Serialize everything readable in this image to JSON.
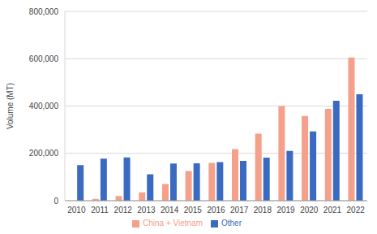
{
  "chart_data": {
    "type": "bar",
    "y_label": "Volume (MT)",
    "categories": [
      "2010",
      "2011",
      "2012",
      "2013",
      "2014",
      "2015",
      "2016",
      "2017",
      "2018",
      "2019",
      "2020",
      "2021",
      "2022"
    ],
    "series": [
      {
        "name": "China + Vietnam",
        "color": "#f4a08b",
        "values": [
          0,
          8000,
          20000,
          35000,
          70000,
          125000,
          160000,
          218000,
          283000,
          400000,
          358000,
          388000,
          605000
        ]
      },
      {
        "name": "Other",
        "color": "#3b6ac1",
        "values": [
          150000,
          178000,
          183000,
          112000,
          157000,
          158000,
          163000,
          168000,
          182000,
          210000,
          293000,
          422000,
          450000
        ]
      }
    ],
    "ylim": [
      0,
      800000
    ],
    "yticks": [
      0,
      {
        "value": 200000,
        "label": "200,000"
      },
      {
        "value": 400000,
        "label": "400,000"
      },
      {
        "value": 600000,
        "label": "600,000"
      },
      {
        "value": 800000,
        "label": "800,000"
      }
    ],
    "grid": true,
    "legend": "bottom"
  }
}
